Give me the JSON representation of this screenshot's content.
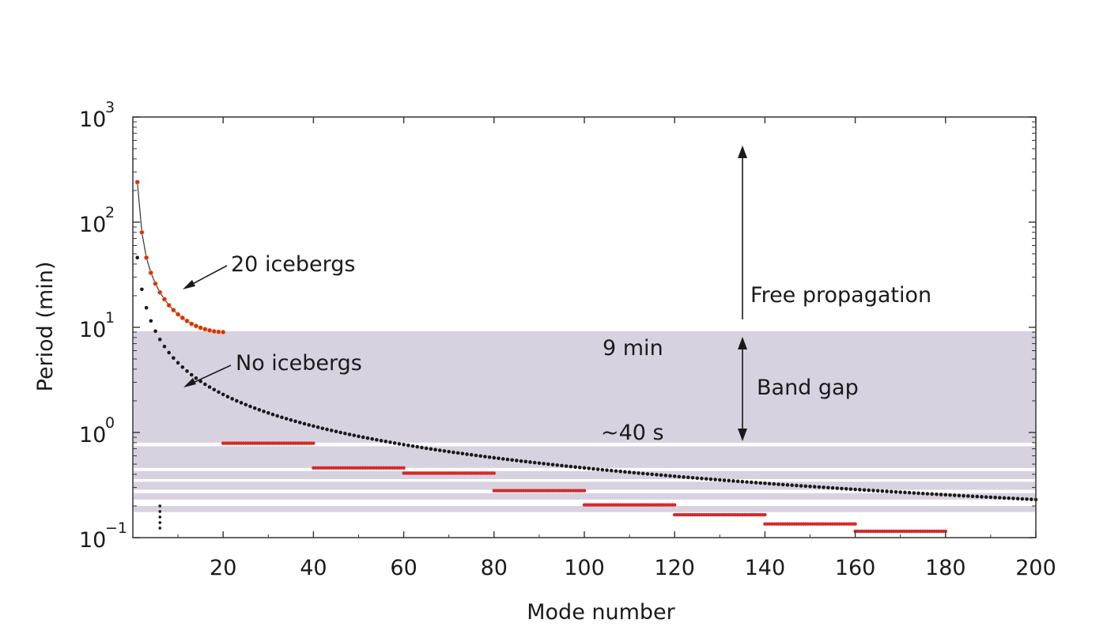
{
  "chart_data": {
    "type": "scatter",
    "title": "",
    "xlabel": "Mode number",
    "ylabel": "Period (min)",
    "xlim": [
      0,
      200
    ],
    "ylim": [
      0.1,
      1000
    ],
    "y_scale": "log",
    "grid": false,
    "x_ticks": [
      {
        "value": 20,
        "label": "20"
      },
      {
        "value": 40,
        "label": "40"
      },
      {
        "value": 60,
        "label": "60"
      },
      {
        "value": 80,
        "label": "80"
      },
      {
        "value": 100,
        "label": "100"
      },
      {
        "value": 120,
        "label": "120"
      },
      {
        "value": 140,
        "label": "140"
      },
      {
        "value": 160,
        "label": "160"
      },
      {
        "value": 180,
        "label": "180"
      },
      {
        "value": 200,
        "label": "200"
      }
    ],
    "y_ticks": [
      {
        "value": 1000,
        "base": "10",
        "exp": "3"
      },
      {
        "value": 100,
        "base": "10",
        "exp": "2"
      },
      {
        "value": 10,
        "base": "10",
        "exp": "1"
      },
      {
        "value": 1,
        "base": "10",
        "exp": "0"
      },
      {
        "value": 0.1,
        "base": "10",
        "exp": "−1"
      }
    ],
    "series": [
      {
        "name": "No icebergs",
        "color": "#1a1a1a",
        "model": "period_min = 46 / mode_number",
        "modes": [
          1,
          200
        ]
      },
      {
        "name": "20 icebergs",
        "color": "#d42a2a",
        "outline": "#e8b44a",
        "x": [
          1,
          2,
          3,
          4,
          5,
          6,
          7,
          8,
          9,
          10,
          11,
          12,
          13,
          14,
          15,
          16,
          17,
          18,
          19,
          20
        ],
        "y": [
          240,
          80,
          46,
          33,
          26,
          21.5,
          18.5,
          16.2,
          14.6,
          13.3,
          12.3,
          11.5,
          10.8,
          10.3,
          9.9,
          9.6,
          9.35,
          9.15,
          9.05,
          9.0
        ]
      }
    ],
    "plateaus": [
      {
        "x_start": 20,
        "x_end": 40,
        "period": 0.79
      },
      {
        "x_start": 40,
        "x_end": 60,
        "period": 0.46
      },
      {
        "x_start": 60,
        "x_end": 80,
        "period": 0.41
      },
      {
        "x_start": 80,
        "x_end": 100,
        "period": 0.28
      },
      {
        "x_start": 100,
        "x_end": 120,
        "period": 0.205
      },
      {
        "x_start": 120,
        "x_end": 140,
        "period": 0.165
      },
      {
        "x_start": 140,
        "x_end": 160,
        "period": 0.135
      },
      {
        "x_start": 160,
        "x_end": 180,
        "period": 0.115
      }
    ],
    "band_gaps": [
      {
        "from": 0.8,
        "to": 9.2
      },
      {
        "from": 0.46,
        "to": 0.74
      },
      {
        "from": 0.36,
        "to": 0.43
      },
      {
        "from": 0.285,
        "to": 0.34
      },
      {
        "from": 0.23,
        "to": 0.265
      },
      {
        "from": 0.175,
        "to": 0.2
      }
    ],
    "band_color": "#d8d2e0",
    "vertical_dots": {
      "x": 6,
      "y_from": 0.112,
      "y_to": 0.2
    },
    "annotations": {
      "twenty": "20 icebergs",
      "none": "No icebergs",
      "free": "Free propagation",
      "nine": "9 min",
      "gap": "Band gap",
      "forty": "~40 s"
    }
  }
}
